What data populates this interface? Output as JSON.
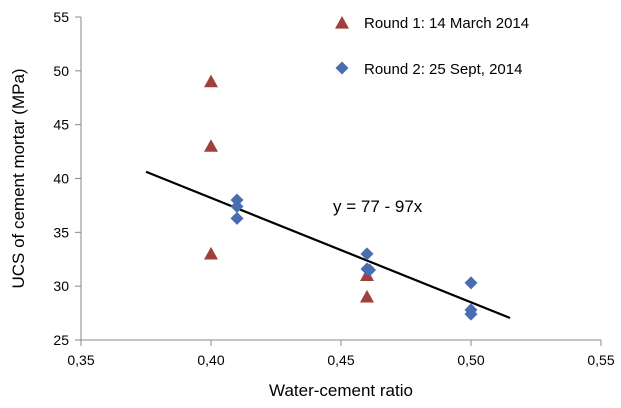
{
  "chart_data": {
    "type": "scatter",
    "title": "",
    "xlabel": "Water-cement ratio",
    "ylabel": "UCS of cement mortar  (MPa)",
    "xlim": [
      0.35,
      0.55
    ],
    "ylim": [
      25,
      55
    ],
    "x_ticks": [
      0.35,
      0.4,
      0.45,
      0.5,
      0.55
    ],
    "x_tick_labels": [
      "0,35",
      "0,40",
      "0,45",
      "0,50",
      "0,55"
    ],
    "y_ticks": [
      25,
      30,
      35,
      40,
      45,
      50,
      55
    ],
    "y_tick_labels": [
      "25",
      "30",
      "35",
      "40",
      "45",
      "50",
      "55"
    ],
    "grid": false,
    "legend_position": "top-right",
    "series": [
      {
        "name": "Round 1:  14 March 2014",
        "marker": "triangle",
        "color": "#a0403c",
        "points": [
          {
            "x": 0.4,
            "y": 49
          },
          {
            "x": 0.4,
            "y": 43
          },
          {
            "x": 0.4,
            "y": 33
          },
          {
            "x": 0.46,
            "y": 31
          },
          {
            "x": 0.46,
            "y": 29
          }
        ]
      },
      {
        "name": "Round 2:  25 Sept, 2014",
        "marker": "diamond",
        "color": "#4a6cb0",
        "points": [
          {
            "x": 0.41,
            "y": 38
          },
          {
            "x": 0.41,
            "y": 37.4
          },
          {
            "x": 0.41,
            "y": 36.3
          },
          {
            "x": 0.46,
            "y": 33
          },
          {
            "x": 0.46,
            "y": 31.6
          },
          {
            "x": 0.461,
            "y": 31.5
          },
          {
            "x": 0.5,
            "y": 30.3
          },
          {
            "x": 0.5,
            "y": 27.8
          },
          {
            "x": 0.5,
            "y": 27.4
          }
        ]
      }
    ],
    "trendline": {
      "equation": "y = 77 - 97x",
      "intercept": 77,
      "slope": -97,
      "x_range": [
        0.375,
        0.515
      ],
      "color": "#000000"
    }
  }
}
